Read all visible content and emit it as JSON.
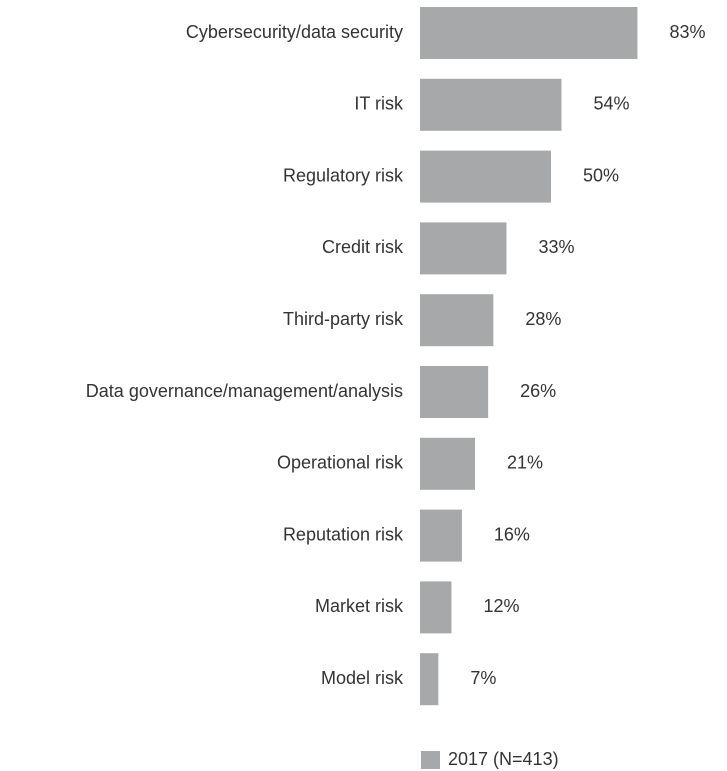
{
  "chart_data": {
    "type": "barh",
    "categories": [
      "Cybersecurity/data security",
      "IT risk",
      "Regulatory risk",
      "Credit risk",
      "Third-party risk",
      "Data governance/management/analysis",
      "Operational risk",
      "Reputation risk",
      "Market risk",
      "Model risk"
    ],
    "series": [
      {
        "name": "2017 (N=413)",
        "color": "#a7a8aa",
        "values": [
          83,
          54,
          50,
          33,
          28,
          26,
          21,
          16,
          12,
          7
        ],
        "value_labels": [
          "83%",
          "54%",
          "50%",
          "33%",
          "28%",
          "26%",
          "21%",
          "16%",
          "12%",
          "7%"
        ]
      }
    ],
    "xlim": [
      0,
      100
    ],
    "legend": "bottom"
  }
}
